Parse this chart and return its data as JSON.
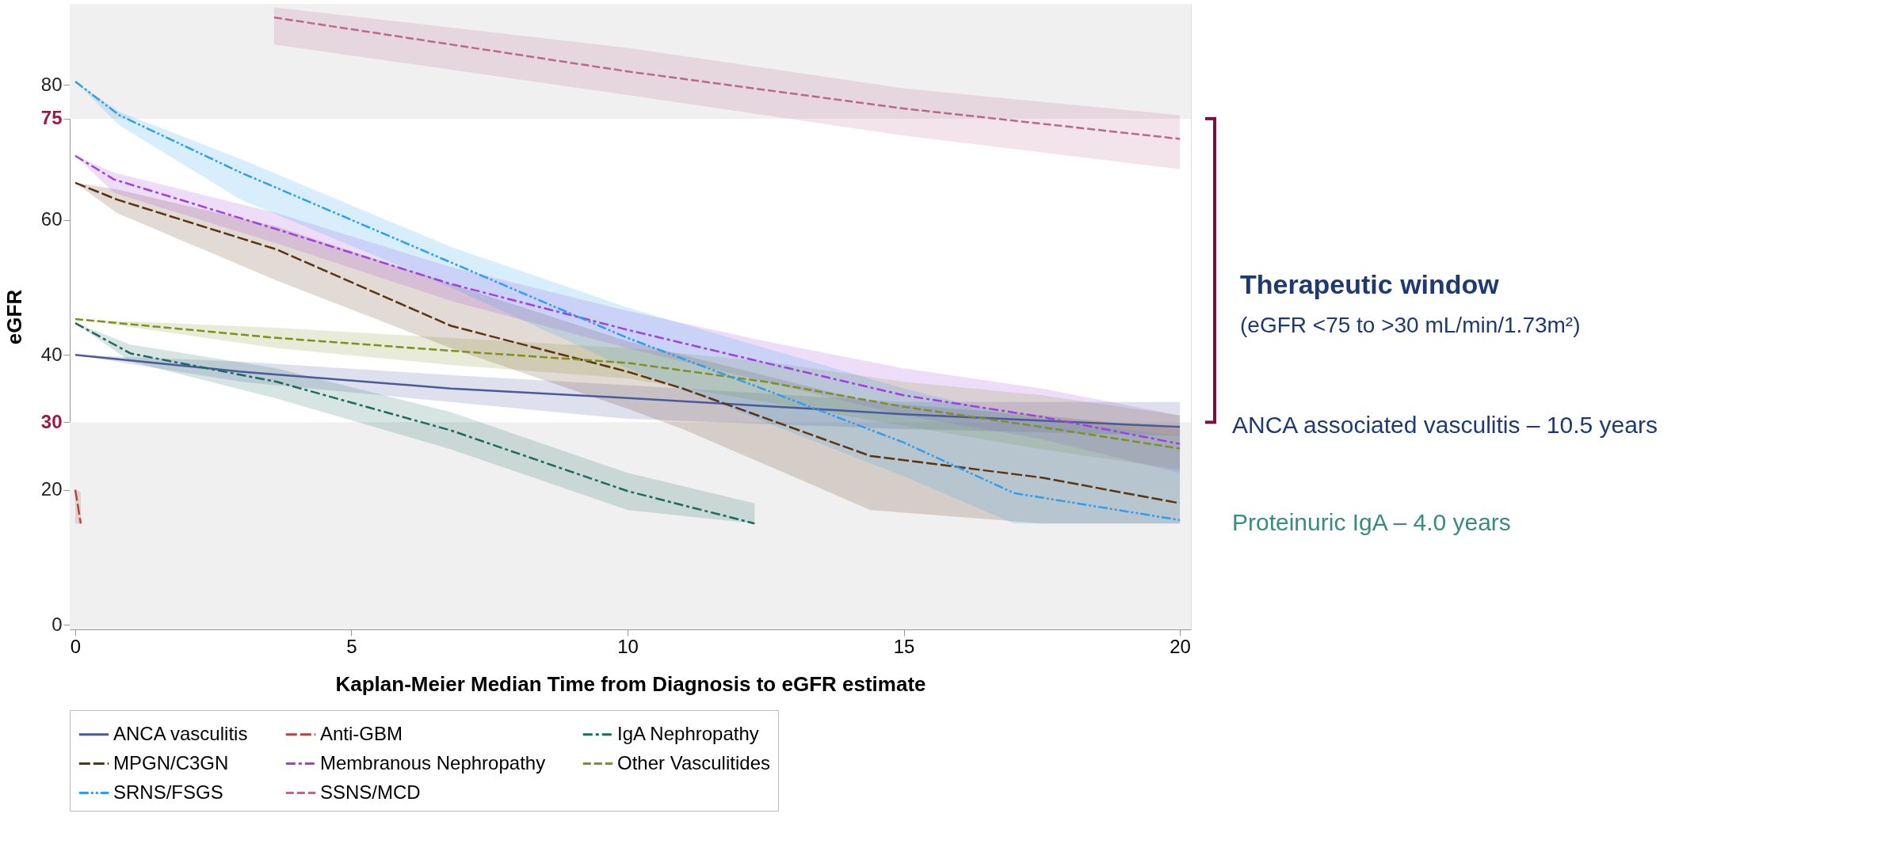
{
  "chart_data": {
    "type": "line",
    "xlabel": "Kaplan-Meier Median Time from Diagnosis to eGFR estimate",
    "ylabel": "eGFR",
    "xlim": [
      -0.1,
      20.2
    ],
    "ylim": [
      -0.7,
      92
    ],
    "xticks": [
      0,
      5,
      10,
      15,
      20
    ],
    "yticks": [
      0,
      20,
      30,
      40,
      60,
      75,
      80
    ],
    "grid": false,
    "legend": "bottom",
    "bands": [
      {
        "axis": "y",
        "from": 75,
        "to": 92,
        "color": "#f0f0f0"
      },
      {
        "axis": "y",
        "from": -0.7,
        "to": 30,
        "color": "#f0f0f0"
      }
    ],
    "annotations": [
      "Therapeutic window",
      "(eGFR <75 to >30 mL/min/1.73m²)",
      "ANCA associated vasculitis – 10.5 years",
      "Proteinuric IgA – 4.0 years"
    ],
    "series": [
      {
        "name": "ANCA vasculitis",
        "color": "#4a5a9a",
        "line_style": "solid",
        "x": [
          0,
          3,
          6.8,
          10,
          15,
          20
        ],
        "values": [
          40,
          37.5,
          35,
          33.6,
          31.2,
          29.3
        ],
        "lower": [
          40,
          36,
          33,
          30.5,
          29,
          28
        ],
        "upper": [
          40,
          39,
          37,
          35.5,
          33,
          33
        ]
      },
      {
        "name": "Anti-GBM",
        "color": "#b5443a",
        "line_style": "longdash",
        "x": [
          0,
          0.1
        ],
        "values": [
          20,
          15
        ],
        "lower": [
          15,
          15
        ],
        "upper": [
          20,
          19.7
        ]
      },
      {
        "name": "IgA Nephropathy",
        "color": "#1a6b5e",
        "line_style": "dashdot",
        "x": [
          0,
          1,
          3.65,
          6.8,
          10,
          12.3
        ],
        "values": [
          44.7,
          40.2,
          36,
          28.8,
          19.8,
          15
        ],
        "lower": [
          44.7,
          39,
          33.5,
          26,
          17,
          15
        ],
        "upper": [
          44.7,
          41.5,
          38,
          31.5,
          22.5,
          18
        ]
      },
      {
        "name": "MPGN/C3GN",
        "color": "#5c3310",
        "line_style": "longdash",
        "x": [
          0,
          0.76,
          3.65,
          6.8,
          10,
          11,
          14.4,
          17.5,
          20
        ],
        "values": [
          65.5,
          63,
          55.6,
          44.3,
          37.5,
          35,
          25,
          21.8,
          18
        ],
        "lower": [
          65.5,
          61,
          51,
          41,
          32,
          29,
          17,
          15,
          15
        ],
        "upper": [
          65.5,
          64.5,
          59,
          50.5,
          42,
          40,
          33,
          31,
          29
        ]
      },
      {
        "name": "Membranous Nephropathy",
        "color": "#a040e0",
        "line_style": "dashdot",
        "x": [
          0,
          0.7,
          3.65,
          6.8,
          10,
          12.5,
          15,
          17.5,
          20
        ],
        "values": [
          69.5,
          66,
          58.6,
          50.5,
          43.7,
          38.8,
          34,
          30.8,
          26.8
        ],
        "lower": [
          69.5,
          64,
          56.5,
          48,
          41,
          36,
          31,
          27.5,
          22.5
        ],
        "upper": [
          69.5,
          67,
          61,
          53,
          46.5,
          42,
          38,
          35,
          31
        ]
      },
      {
        "name": "Other Vasculitides",
        "color": "#7f9020",
        "line_style": "dashed",
        "x": [
          0,
          3.65,
          6.8,
          10,
          12.5,
          15,
          17.5,
          20
        ],
        "values": [
          45.3,
          42.5,
          40.6,
          38.8,
          36,
          32.3,
          29.3,
          26.1
        ],
        "lower": [
          45.3,
          41,
          38.5,
          36.5,
          33,
          29.5,
          26,
          23
        ],
        "upper": [
          45.3,
          44,
          42.5,
          41,
          39,
          36,
          34,
          31
        ]
      },
      {
        "name": "SRNS/FSGS",
        "color": "#2f9ef0",
        "line_style": "dashdotdot",
        "x": [
          0,
          0.8,
          3,
          6.8,
          10,
          12.5,
          15,
          17,
          20
        ],
        "values": [
          80.5,
          75.5,
          67,
          53.7,
          42.5,
          34.8,
          27,
          19.5,
          15.5
        ],
        "lower": [
          80.5,
          74,
          63,
          50,
          38,
          30,
          22,
          15,
          15
        ],
        "upper": [
          80.5,
          76,
          69,
          56,
          47,
          41,
          35,
          31,
          28
        ]
      },
      {
        "name": "SSNS/MCD",
        "color": "#b86a8a",
        "line_style": "dashed",
        "x": [
          3.6,
          10,
          15,
          20
        ],
        "values": [
          90,
          82,
          76.5,
          72
        ],
        "lower": [
          86,
          78.5,
          72.5,
          67.5
        ],
        "upper": [
          91.5,
          85.5,
          79.5,
          75.5
        ]
      }
    ]
  }
}
